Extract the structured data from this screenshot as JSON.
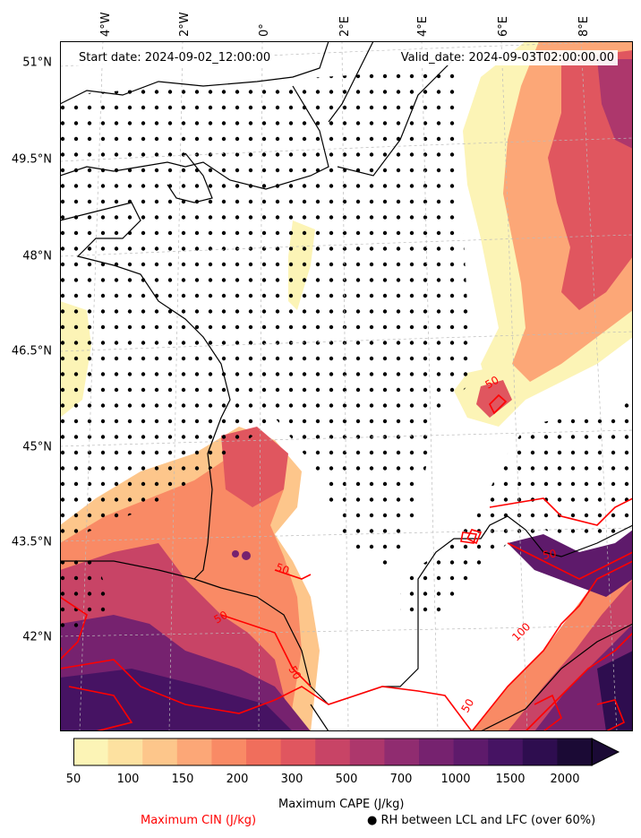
{
  "header": {
    "start_date": "Start date: 2024-09-02_12:00:00",
    "valid_date": "Valid_date: 2024-09-03T02:00:00.00"
  },
  "axes": {
    "lat_labels": [
      "51°N",
      "49.5°N",
      "48°N",
      "46.5°N",
      "45°N",
      "43.5°N",
      "42°N"
    ],
    "lon_labels": [
      "4°W",
      "2°W",
      "0°",
      "2°E",
      "4°E",
      "6°E",
      "8°E"
    ]
  },
  "contour_labels": [
    "50",
    "50",
    "50",
    "50",
    "50",
    "100",
    "50",
    "50"
  ],
  "colorbar": {
    "ticks": [
      "50",
      "100",
      "150",
      "200",
      "300",
      "500",
      "700",
      "1000",
      "1500",
      "2000"
    ],
    "colors": [
      "#fcf4b6",
      "#fde1a0",
      "#fdc68b",
      "#fca777",
      "#f98a65",
      "#f06e5c",
      "#e0565f",
      "#c84466",
      "#ad376c",
      "#902c70",
      "#76226f",
      "#5e1a6b",
      "#461363",
      "#2e0d4f",
      "#1b0a35"
    ],
    "label": "Maximum CAPE (J/kg)"
  },
  "legend": {
    "cin_label": "Maximum CIN (J/kg)",
    "cin_color": "#ff0000",
    "rh_symbol": "●",
    "rh_label": "RH between LCL and LFC (over 60%)"
  },
  "colors": {
    "land_line": "#000000",
    "grid": "#bbbbbb",
    "cin": "#ff0000",
    "stipple": "#000000"
  }
}
